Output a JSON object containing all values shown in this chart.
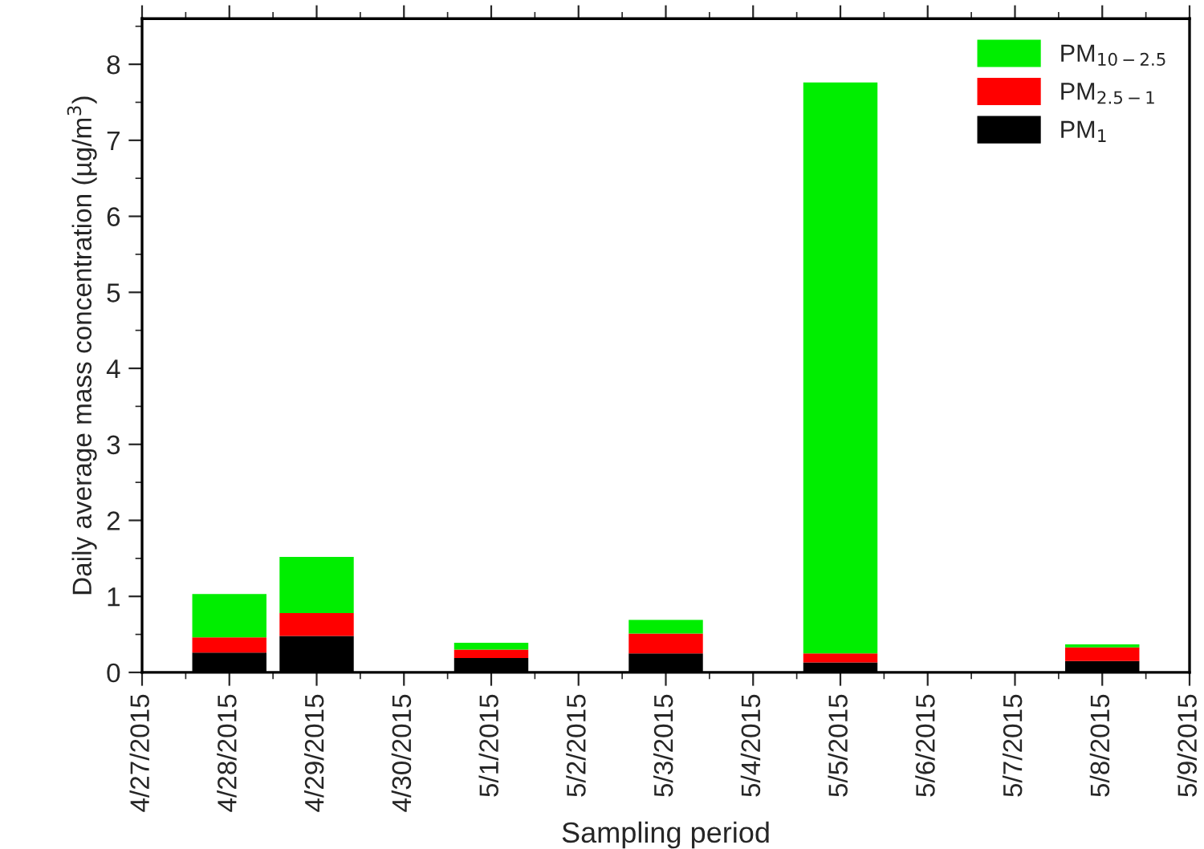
{
  "chart_data": {
    "type": "bar",
    "stacked": true,
    "xlabel": "Sampling period",
    "ylabel": "Daily average mass concentration (µg/m$^{3}$)",
    "x": [
      "2015-04-28",
      "2015-04-29",
      "2015-05-01",
      "2015-05-03",
      "2015-05-05",
      "2015-05-08"
    ],
    "series": [
      {
        "name": "PM$_{1}$",
        "color": "#000000",
        "values": [
          0.26,
          0.48,
          0.19,
          0.25,
          0.13,
          0.15
        ]
      },
      {
        "name": "PM$_{2.5−1}$",
        "color": "#ff0000",
        "values": [
          0.2,
          0.3,
          0.11,
          0.26,
          0.12,
          0.18
        ]
      },
      {
        "name": "PM$_{10−2.5}$",
        "color": "#00ee00",
        "values": [
          0.57,
          0.74,
          0.09,
          0.18,
          7.51,
          0.04
        ]
      }
    ],
    "xlim": [
      "2015-04-27",
      "2015-05-09"
    ],
    "xticks": [
      {
        "value": "2015-04-27",
        "label": "4/27/2015"
      },
      {
        "value": "2015-04-28",
        "label": "4/28/2015"
      },
      {
        "value": "2015-04-29",
        "label": "4/29/2015"
      },
      {
        "value": "2015-04-30",
        "label": "4/30/2015"
      },
      {
        "value": "2015-05-01",
        "label": "5/1/2015"
      },
      {
        "value": "2015-05-02",
        "label": "5/2/2015"
      },
      {
        "value": "2015-05-03",
        "label": "5/3/2015"
      },
      {
        "value": "2015-05-04",
        "label": "5/4/2015"
      },
      {
        "value": "2015-05-05",
        "label": "5/5/2015"
      },
      {
        "value": "2015-05-06",
        "label": "5/6/2015"
      },
      {
        "value": "2015-05-07",
        "label": "5/7/2015"
      },
      {
        "value": "2015-05-08",
        "label": "5/8/2015"
      },
      {
        "value": "2015-05-09",
        "label": "5/9/2015"
      }
    ],
    "ylim": [
      0,
      8.6
    ],
    "yticks": [
      0,
      1,
      2,
      3,
      4,
      5,
      6,
      7,
      8
    ],
    "grid": false,
    "legend": "top right"
  }
}
